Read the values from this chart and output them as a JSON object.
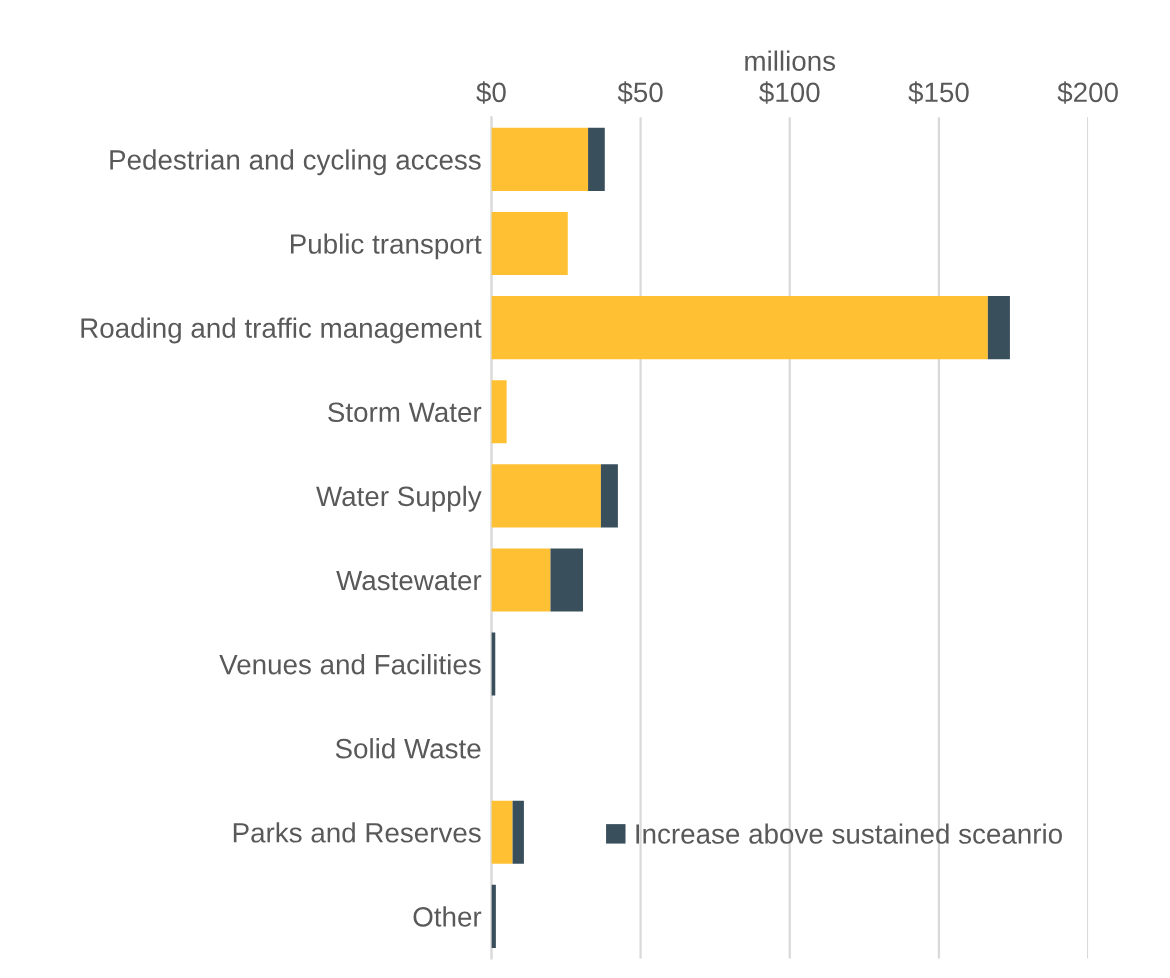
{
  "chart_data": {
    "type": "bar",
    "orientation": "horizontal",
    "stacked": true,
    "xlabel": "millions",
    "categories": [
      "Pedestrian and cycling access",
      "Public transport",
      "Roading and traffic management",
      "Storm Water",
      "Water Supply",
      "Wastewater",
      "Venues and Facilities",
      "Solid Waste",
      "Parks and Reserves",
      "Other"
    ],
    "series": [
      {
        "color": "#ffc133",
        "values": [
          32.4,
          25.6,
          166.4,
          5.1,
          36.7,
          19.8,
          0,
          0,
          7.1,
          0
        ]
      },
      {
        "name": "Increase above sustained sceanrio",
        "color": "#3a4f5c",
        "values": [
          5.6,
          0,
          7.4,
          0,
          5.7,
          10.9,
          1.3,
          0,
          3.8,
          1.5
        ]
      }
    ],
    "xlim": [
      0,
      200
    ],
    "xticks": [
      {
        "value": 0,
        "label": "$0"
      },
      {
        "value": 50,
        "label": "$50"
      },
      {
        "value": 100,
        "label": "$100"
      },
      {
        "value": 150,
        "label": "$150"
      },
      {
        "value": 200,
        "label": "$200"
      }
    ],
    "grid": "x",
    "legend": "bottom right"
  }
}
